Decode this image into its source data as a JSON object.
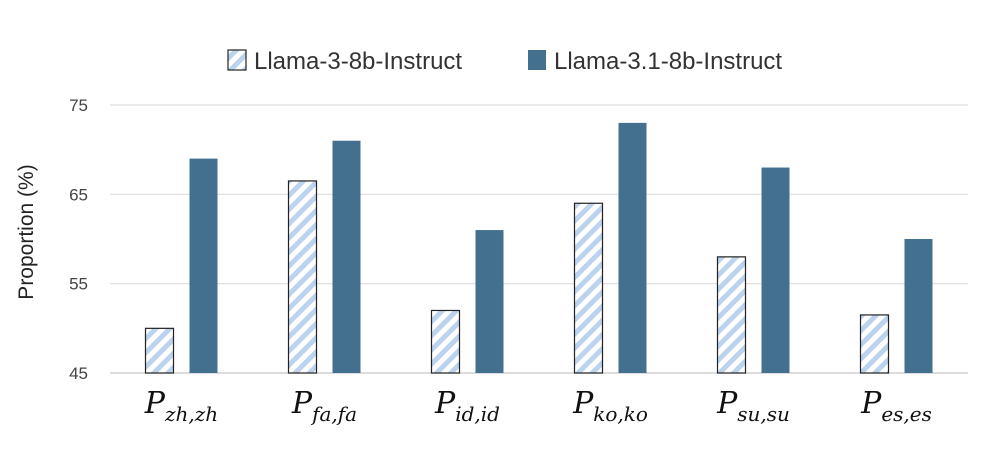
{
  "chart_data": {
    "type": "bar",
    "ylabel": "Proportion (%)",
    "xlabel": "",
    "ylim": [
      45,
      75
    ],
    "yticks": [
      45,
      55,
      65,
      75
    ],
    "grid": true,
    "legend_position": "top",
    "categories": [
      {
        "main": "P",
        "sub": "zh,zh"
      },
      {
        "main": "P",
        "sub": "fa,fa"
      },
      {
        "main": "P",
        "sub": "id,id"
      },
      {
        "main": "P",
        "sub": "ko,ko"
      },
      {
        "main": "P",
        "sub": "su,su"
      },
      {
        "main": "P",
        "sub": "es,es"
      }
    ],
    "series": [
      {
        "name": "Llama-3-8b-Instruct",
        "values": [
          50,
          66.5,
          52,
          64,
          58,
          51.5
        ],
        "color": "#bcd3ee",
        "pattern": "diagonal-stripes"
      },
      {
        "name": "Llama-3.1-8b-Instruct",
        "values": [
          69,
          71,
          61,
          73,
          68,
          60
        ],
        "color": "#44708f",
        "pattern": "solid"
      }
    ]
  }
}
